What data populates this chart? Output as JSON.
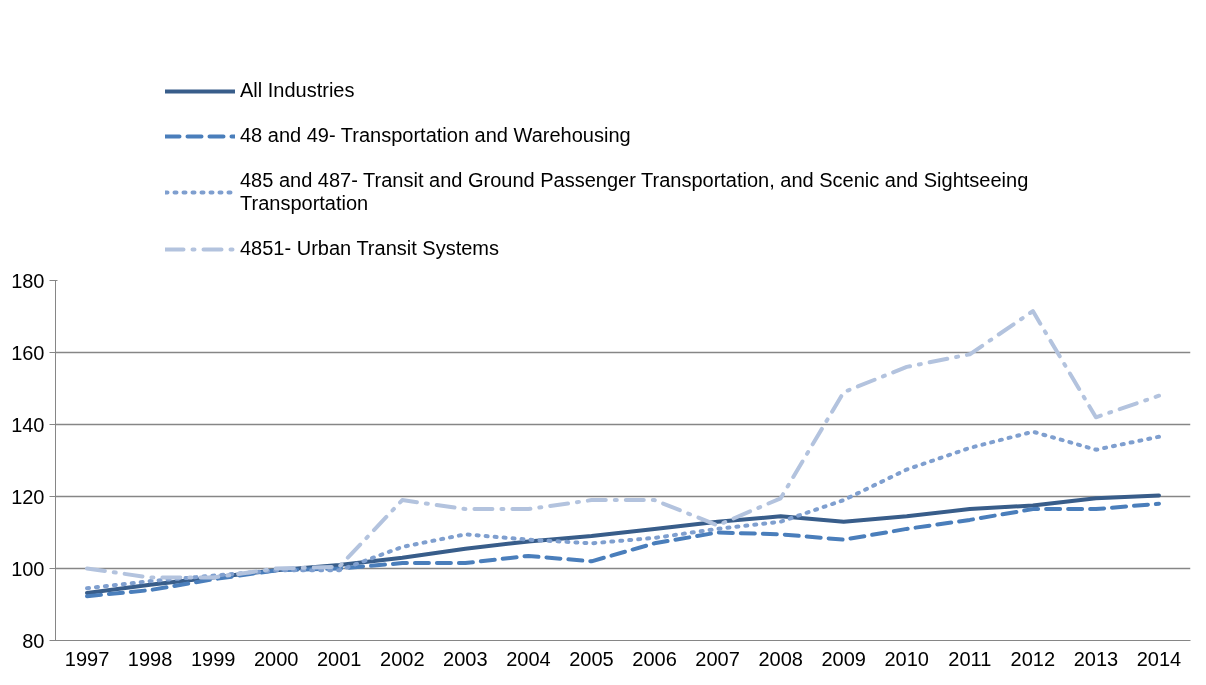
{
  "chart_data": {
    "type": "line",
    "categories": [
      "1997",
      "1998",
      "1999",
      "2000",
      "2001",
      "2002",
      "2003",
      "2004",
      "2005",
      "2006",
      "2007",
      "2008",
      "2009",
      "2010",
      "2011",
      "2012",
      "2013",
      "2014"
    ],
    "series": [
      {
        "name": "All Industries",
        "color": "#385d8a",
        "line_style": "solid",
        "values": [
          93.2,
          95.5,
          97.5,
          99.5,
          101,
          103,
          105.5,
          107.5,
          109,
          111,
          113,
          114.5,
          113,
          114.5,
          116.5,
          117.5,
          119.5,
          120.3
        ]
      },
      {
        "name": "48 and 49- Transportation and Warehousing",
        "color": "#4a7ebb",
        "line_style": "dashed",
        "values": [
          92.3,
          94,
          97,
          99.5,
          100,
          101.5,
          101.5,
          103.5,
          102,
          107,
          110,
          109.5,
          108,
          111,
          113.5,
          116.5,
          116.5,
          118
        ]
      },
      {
        "name": "485 and 487- Transit and Ground Passenger Transportation, and Scenic and Sightseeing Transportation",
        "color": "#7f9fcf",
        "line_style": "dotted",
        "values": [
          94.5,
          96.5,
          98,
          99.5,
          99.5,
          106,
          109.5,
          108,
          107,
          108.5,
          111,
          113,
          119,
          127.5,
          133.5,
          138,
          133,
          136.6
        ]
      },
      {
        "name": "4851- Urban Transit Systems",
        "color": "#b3c3de",
        "line_style": "dashdot",
        "values": [
          100,
          97.5,
          97.5,
          100,
          100.5,
          119,
          116.5,
          116.5,
          119,
          119,
          112,
          119.5,
          149,
          156,
          159.5,
          171.5,
          142,
          148
        ]
      }
    ],
    "ylim": [
      80,
      180
    ],
    "yticks": [
      80,
      100,
      120,
      140,
      160,
      180
    ],
    "grid": "y",
    "legend": "top",
    "marker": "none"
  }
}
